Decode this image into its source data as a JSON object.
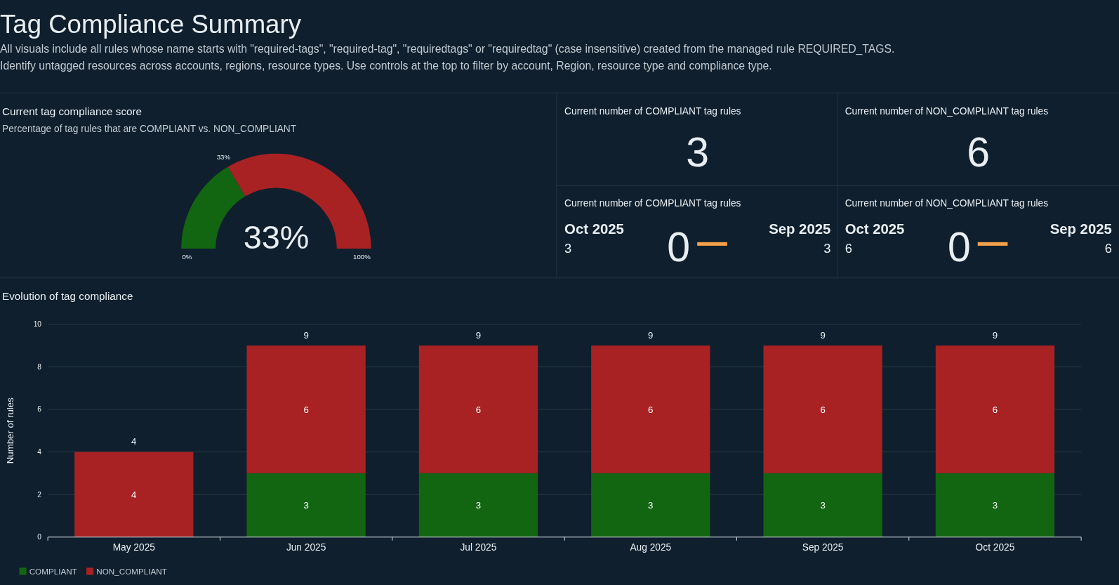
{
  "chart_data": [
    {
      "type": "other",
      "title": "Tag Compliance Summary",
      "annotations": [
        "All visuals include all rules whose name starts with \"required-tags\", \"required-tag\", \"requiredtags\" or \"requiredtag\" (case insensitive) created from the managed rule REQUIRED_TAGS.",
        "Identify untagged resources across accounts, regions, resource types. Use controls at the top to filter by account, Region, resource type and compliance type."
      ]
    },
    {
      "type": "donut",
      "title": "Current tag compliance score",
      "subtitle": "Percentage of tag rules that are COMPLIANT vs. NON_COMPLIANT",
      "categories": [
        null,
        null
      ],
      "values": [
        33,
        67
      ],
      "colors": [
        "#126612",
        "#a82224"
      ],
      "value_labels": [
        "33%",
        null
      ],
      "annotations": [
        "33%",
        "0%",
        "100%"
      ]
    },
    {
      "type": "other",
      "title": "Current number of COMPLIANT tag rules",
      "annotations": [
        "3"
      ]
    },
    {
      "type": "other",
      "title": "Current number of NON_COMPLIANT tag rules",
      "annotations": [
        "6"
      ]
    },
    {
      "type": "other",
      "title": "Current number of COMPLIANT tag rules",
      "annotations": [
        "Oct 2025",
        "3",
        "0",
        "Sep 2025",
        "3"
      ]
    },
    {
      "type": "other",
      "title": "Current number of NON_COMPLIANT tag rules",
      "annotations": [
        "Oct 2025",
        "6",
        "0",
        "Sep 2025",
        "6"
      ]
    },
    {
      "type": "bar",
      "title": "Evolution of tag compliance",
      "ylabel": "Number of rules",
      "stacked": true,
      "categories": [
        "May 2025",
        "Jun 2025",
        "Jul 2025",
        "Aug 2025",
        "Sep 2025",
        "Oct 2025"
      ],
      "series": [
        {
          "name": "COMPLIANT",
          "color": "#126612",
          "values": [
            null,
            3,
            3,
            3,
            3,
            3
          ]
        },
        {
          "name": "NON_COMPLIANT",
          "color": "#a82224",
          "values": [
            4,
            6,
            6,
            6,
            6,
            6
          ]
        }
      ],
      "ylim": [
        0,
        10
      ],
      "yticks": [
        0,
        2,
        4,
        6,
        8,
        10
      ],
      "grid": "y",
      "legend": "bottom left",
      "data_labels": true,
      "totals": [
        "4",
        "9",
        "9",
        "9",
        "9",
        "9"
      ]
    }
  ]
}
